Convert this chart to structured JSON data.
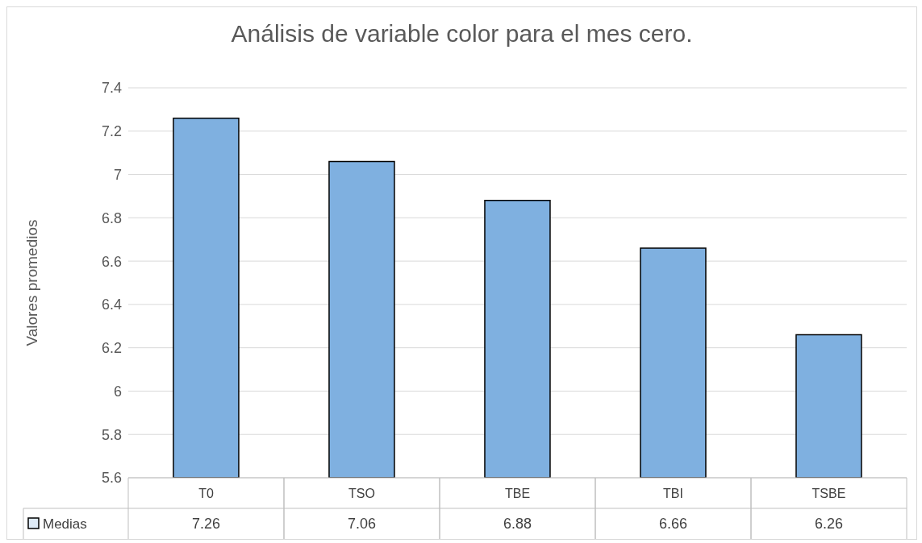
{
  "chart_data": {
    "type": "bar",
    "title": "Análisis de variable color para el mes cero.",
    "ylabel": "Valores promedios",
    "categories": [
      "T0",
      "TSO",
      "TBE",
      "TBI",
      "TSBE"
    ],
    "series": [
      {
        "name": "Medias",
        "color": "#7fb0e0",
        "values": [
          7.26,
          7.06,
          6.88,
          6.66,
          6.26
        ]
      }
    ],
    "ylim": [
      5.6,
      7.4
    ],
    "yticks": [
      5.6,
      5.8,
      6,
      6.2,
      6.4,
      6.6,
      6.8,
      7,
      7.2,
      7.4
    ],
    "grid": "y",
    "data_labels": true,
    "legend": "bottom left"
  }
}
